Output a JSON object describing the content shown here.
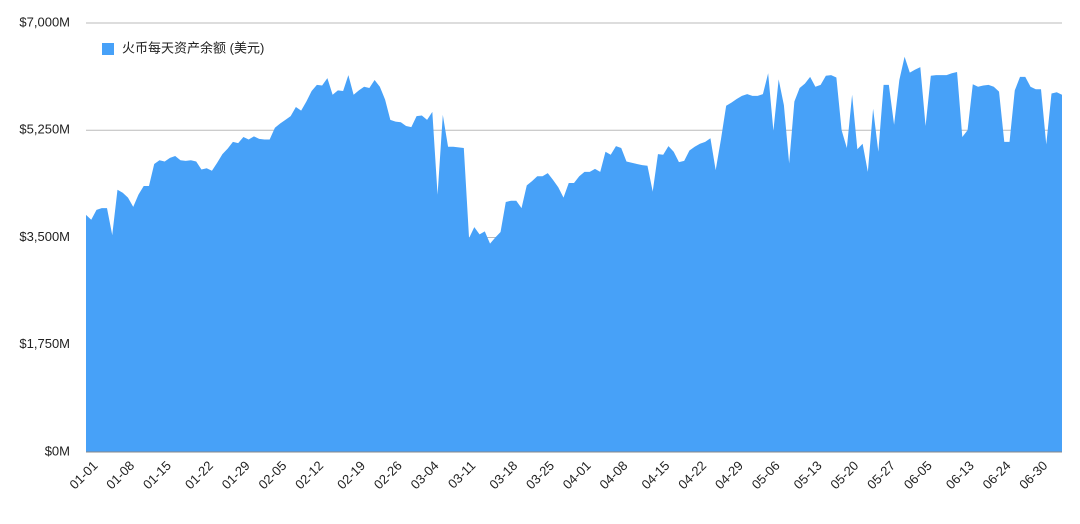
{
  "chart_data": {
    "type": "area",
    "categories": [
      "01-01",
      null,
      null,
      null,
      null,
      null,
      null,
      "01-08",
      null,
      null,
      null,
      null,
      null,
      null,
      "01-15",
      null,
      null,
      null,
      null,
      null,
      null,
      null,
      "01-22",
      null,
      null,
      null,
      null,
      null,
      null,
      "01-29",
      null,
      null,
      null,
      null,
      null,
      null,
      "02-05",
      null,
      null,
      null,
      null,
      null,
      null,
      "02-12",
      null,
      null,
      null,
      null,
      null,
      null,
      null,
      "02-19",
      null,
      null,
      null,
      null,
      null,
      null,
      "02-26",
      null,
      null,
      null,
      null,
      null,
      null,
      "03-04",
      null,
      null,
      null,
      null,
      null,
      null,
      "03-11",
      null,
      null,
      null,
      null,
      null,
      null,
      null,
      "03-18",
      null,
      null,
      null,
      null,
      null,
      null,
      "03-25",
      null,
      null,
      null,
      null,
      null,
      null,
      "04-01",
      null,
      null,
      null,
      null,
      null,
      null,
      "04-08",
      null,
      null,
      null,
      null,
      null,
      null,
      null,
      "04-15",
      null,
      null,
      null,
      null,
      null,
      null,
      "04-22",
      null,
      null,
      null,
      null,
      null,
      null,
      "04-29",
      null,
      null,
      null,
      null,
      null,
      null,
      "05-06",
      null,
      null,
      null,
      null,
      null,
      null,
      null,
      "05-13",
      null,
      null,
      null,
      null,
      null,
      null,
      "05-20",
      null,
      null,
      null,
      null,
      null,
      null,
      "05-27",
      null,
      null,
      null,
      null,
      null,
      null,
      "06-05",
      null,
      null,
      null,
      null,
      null,
      null,
      null,
      "06-13",
      null,
      null,
      null,
      null,
      null,
      null,
      "06-24",
      null,
      null,
      null,
      null,
      null,
      null,
      "06-30",
      null,
      null,
      null,
      null,
      null
    ],
    "series": [
      {
        "name": "火币每天资产余额 (美元)",
        "color": "#47a1f8",
        "values": [
          3870,
          3790,
          3950,
          3980,
          3980,
          3540,
          4280,
          4230,
          4150,
          4000,
          4200,
          4340,
          4340,
          4700,
          4760,
          4740,
          4800,
          4830,
          4760,
          4750,
          4760,
          4740,
          4610,
          4630,
          4590,
          4720,
          4860,
          4950,
          5060,
          5040,
          5140,
          5100,
          5150,
          5110,
          5100,
          5100,
          5290,
          5360,
          5420,
          5480,
          5630,
          5570,
          5720,
          5890,
          5990,
          5980,
          6100,
          5830,
          5900,
          5890,
          6150,
          5830,
          5900,
          5960,
          5940,
          6070,
          5960,
          5750,
          5420,
          5390,
          5380,
          5320,
          5300,
          5480,
          5490,
          5420,
          5550,
          4200,
          5500,
          4980,
          4980,
          4970,
          4960,
          3490,
          3670,
          3550,
          3600,
          3400,
          3500,
          3590,
          4080,
          4100,
          4100,
          3980,
          4350,
          4420,
          4500,
          4500,
          4550,
          4440,
          4320,
          4150,
          4390,
          4390,
          4500,
          4570,
          4570,
          4620,
          4570,
          4900,
          4850,
          4990,
          4960,
          4740,
          4720,
          4700,
          4680,
          4670,
          4250,
          4860,
          4850,
          4990,
          4900,
          4730,
          4750,
          4920,
          4980,
          5030,
          5060,
          5120,
          4600,
          5100,
          5650,
          5700,
          5760,
          5810,
          5840,
          5810,
          5810,
          5840,
          6180,
          5240,
          6080,
          5660,
          4710,
          5720,
          5940,
          6010,
          6120,
          5960,
          5990,
          6140,
          6150,
          6110,
          5250,
          4960,
          5830,
          4940,
          5030,
          4570,
          5600,
          4900,
          5990,
          5990,
          5340,
          6070,
          6450,
          6190,
          6240,
          6280,
          5320,
          6140,
          6150,
          6150,
          6150,
          6180,
          6200,
          5140,
          5250,
          6000,
          5960,
          5980,
          5990,
          5960,
          5880,
          5060,
          5060,
          5900,
          6120,
          6120,
          5960,
          5920,
          5920,
          5020,
          5850,
          5870,
          5830
        ]
      }
    ],
    "ylim": [
      0,
      7000
    ],
    "yticks": [
      {
        "value": 0,
        "label": "$0M"
      },
      {
        "value": 1750,
        "label": "$1,750M"
      },
      {
        "value": 3500,
        "label": "$3,500M"
      },
      {
        "value": 5250,
        "label": "$5,250M"
      },
      {
        "value": 7000,
        "label": "$7,000M"
      }
    ],
    "grid": true,
    "legend": "top-left"
  }
}
